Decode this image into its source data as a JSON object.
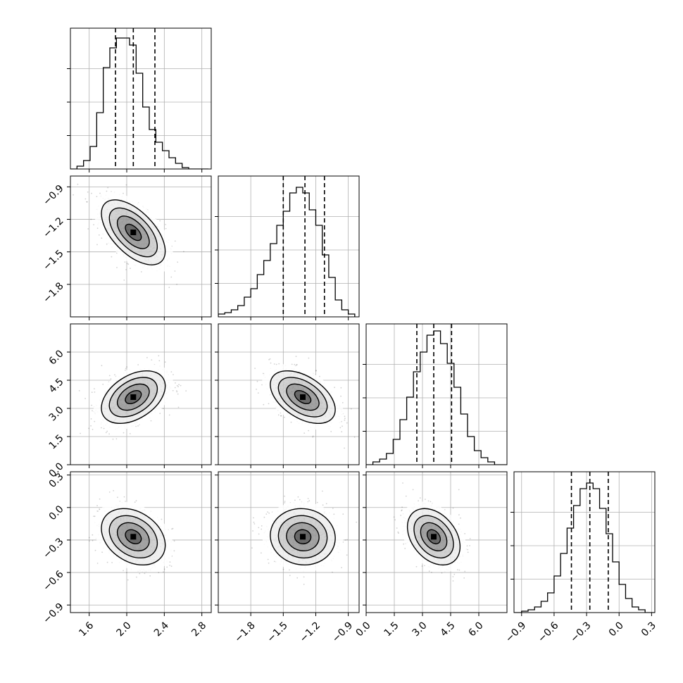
{
  "chart_data": {
    "type": "corner",
    "parameters": 4,
    "grid": true,
    "colors": {
      "ink": "#000000",
      "grid": "#b0b0b0",
      "density": "#000000"
    },
    "axes": [
      {
        "range": [
          1.4,
          2.9
        ],
        "ticks": [
          "1.6",
          "2.0",
          "2.4",
          "2.8"
        ],
        "tick_values": [
          1.6,
          2.0,
          2.4,
          2.8
        ]
      },
      {
        "range": [
          -2.1,
          -0.8
        ],
        "ticks": [
          "-1.8",
          "-1.5",
          "-1.2",
          "-0.9"
        ],
        "tick_values": [
          -1.8,
          -1.5,
          -1.2,
          -0.9
        ]
      },
      {
        "range": [
          0.0,
          7.5
        ],
        "ticks": [
          "0.0",
          "1.5",
          "3.0",
          "4.5",
          "6.0"
        ],
        "tick_values": [
          0.0,
          1.5,
          3.0,
          4.5,
          6.0
        ]
      },
      {
        "range": [
          -0.97,
          0.33
        ],
        "ticks": [
          "-0.9",
          "-0.6",
          "-0.3",
          "0.0",
          "0.3"
        ],
        "tick_values": [
          -0.9,
          -0.6,
          -0.3,
          0.0,
          0.3
        ]
      }
    ],
    "marginals": [
      {
        "param": 0,
        "quantiles": [
          1.88,
          2.07,
          2.3
        ],
        "bin_edges": [
          1.4,
          1.47,
          1.54,
          1.61,
          1.68,
          1.75,
          1.82,
          1.89,
          1.96,
          2.03,
          2.1,
          2.17,
          2.24,
          2.31,
          2.38,
          2.45,
          2.52,
          2.59,
          2.66,
          2.73,
          2.8,
          2.87
        ],
        "counts": [
          0.0,
          0.02,
          0.06,
          0.16,
          0.4,
          0.72,
          0.86,
          0.93,
          0.93,
          0.88,
          0.68,
          0.44,
          0.28,
          0.19,
          0.13,
          0.08,
          0.04,
          0.01,
          0.0,
          0.0,
          0.0
        ]
      },
      {
        "param": 1,
        "quantiles": [
          -1.5,
          -1.3,
          -1.12
        ],
        "bin_edges": [
          -2.1,
          -2.04,
          -1.98,
          -1.92,
          -1.86,
          -1.8,
          -1.74,
          -1.68,
          -1.62,
          -1.56,
          -1.5,
          -1.44,
          -1.38,
          -1.32,
          -1.26,
          -1.2,
          -1.14,
          -1.08,
          -1.02,
          -0.96,
          -0.9,
          -0.84
        ],
        "counts": [
          0.02,
          0.03,
          0.05,
          0.08,
          0.14,
          0.2,
          0.3,
          0.4,
          0.52,
          0.65,
          0.75,
          0.88,
          0.92,
          0.88,
          0.76,
          0.65,
          0.44,
          0.28,
          0.12,
          0.05,
          0.02
        ]
      },
      {
        "param": 2,
        "quantiles": [
          2.7,
          3.6,
          4.55
        ],
        "bin_edges": [
          0.0,
          0.36,
          0.72,
          1.08,
          1.44,
          1.8,
          2.16,
          2.52,
          2.88,
          3.24,
          3.6,
          3.96,
          4.32,
          4.68,
          5.04,
          5.4,
          5.76,
          6.12,
          6.48,
          6.84,
          7.2,
          7.5
        ],
        "counts": [
          0.0,
          0.02,
          0.04,
          0.08,
          0.18,
          0.32,
          0.48,
          0.66,
          0.8,
          0.92,
          0.95,
          0.86,
          0.72,
          0.55,
          0.36,
          0.2,
          0.1,
          0.05,
          0.02,
          0.0,
          0.0
        ]
      },
      {
        "param": 3,
        "quantiles": [
          -0.44,
          -0.27,
          -0.1
        ],
        "bin_edges": [
          -0.97,
          -0.9,
          -0.84,
          -0.78,
          -0.72,
          -0.66,
          -0.6,
          -0.54,
          -0.48,
          -0.42,
          -0.36,
          -0.3,
          -0.24,
          -0.18,
          -0.12,
          -0.06,
          0.0,
          0.06,
          0.12,
          0.18,
          0.24,
          0.33
        ],
        "counts": [
          0.0,
          0.01,
          0.02,
          0.04,
          0.08,
          0.14,
          0.26,
          0.42,
          0.6,
          0.76,
          0.88,
          0.92,
          0.88,
          0.74,
          0.56,
          0.36,
          0.2,
          0.1,
          0.04,
          0.02,
          0.0
        ]
      }
    ],
    "joints": [
      {
        "x_param": 0,
        "y_param": 1,
        "center": [
          2.07,
          -1.32
        ],
        "sd": [
          0.17,
          0.15
        ],
        "corr": -0.58
      },
      {
        "x_param": 0,
        "y_param": 2,
        "center": [
          2.07,
          3.6
        ],
        "sd": [
          0.17,
          0.7
        ],
        "corr": 0.42
      },
      {
        "x_param": 1,
        "y_param": 2,
        "center": [
          -1.32,
          3.6
        ],
        "sd": [
          0.15,
          0.7
        ],
        "corr": -0.48
      },
      {
        "x_param": 0,
        "y_param": 3,
        "center": [
          2.07,
          -0.27
        ],
        "sd": [
          0.17,
          0.13
        ],
        "corr": -0.3
      },
      {
        "x_param": 1,
        "y_param": 3,
        "center": [
          -1.32,
          -0.27
        ],
        "sd": [
          0.15,
          0.13
        ],
        "corr": -0.05
      },
      {
        "x_param": 2,
        "y_param": 3,
        "center": [
          3.6,
          -0.27
        ],
        "sd": [
          0.7,
          0.13
        ],
        "corr": -0.35
      }
    ]
  }
}
